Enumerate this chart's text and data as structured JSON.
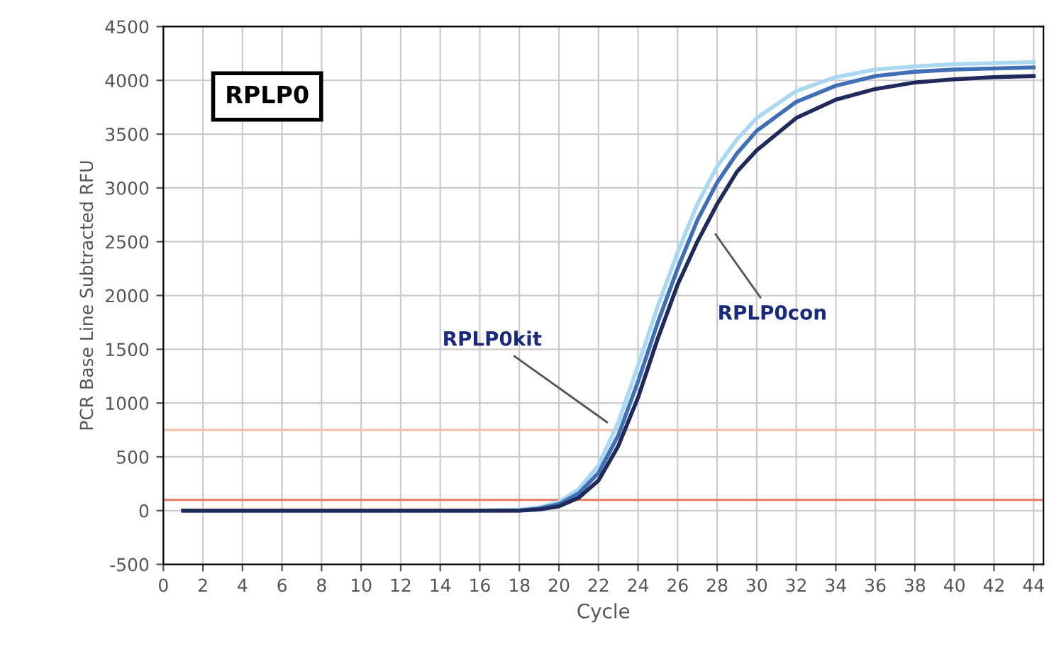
{
  "chart_data": {
    "type": "line",
    "xlabel": "Cycle",
    "ylabel": "PCR Base Line Subtracted RFU",
    "xlim": [
      0,
      44.5
    ],
    "xticks": [
      0,
      2,
      4,
      6,
      8,
      10,
      12,
      14,
      16,
      18,
      20,
      22,
      24,
      26,
      28,
      30,
      32,
      34,
      36,
      38,
      40,
      42,
      44
    ],
    "ylim": [
      -500,
      4500
    ],
    "yticks": [
      -500,
      0,
      500,
      1000,
      1500,
      2000,
      2500,
      3000,
      3500,
      4000,
      4500
    ],
    "grid": true,
    "marker": "none",
    "line_style": "solid",
    "x": [
      1,
      4,
      8,
      12,
      16,
      18,
      19,
      20,
      21,
      22,
      23,
      24,
      25,
      26,
      27,
      28,
      29,
      30,
      32,
      34,
      36,
      38,
      40,
      42,
      44
    ],
    "series": [
      {
        "color": "#a9d8f0",
        "values": [
          0,
          0,
          0,
          0,
          0,
          10,
          30,
          80,
          200,
          420,
          820,
          1350,
          1900,
          2400,
          2850,
          3200,
          3450,
          3650,
          3900,
          4030,
          4100,
          4130,
          4150,
          4160,
          4170
        ]
      },
      {
        "color": "#3f6fb5",
        "values": [
          0,
          0,
          0,
          0,
          0,
          0,
          20,
          60,
          160,
          350,
          700,
          1200,
          1750,
          2250,
          2700,
          3050,
          3320,
          3530,
          3800,
          3950,
          4040,
          4080,
          4100,
          4110,
          4120
        ]
      },
      {
        "color": "#1f2a5a",
        "values": [
          0,
          0,
          0,
          0,
          0,
          0,
          10,
          40,
          120,
          280,
          600,
          1050,
          1600,
          2100,
          2500,
          2850,
          3150,
          3350,
          3650,
          3820,
          3920,
          3980,
          4010,
          4030,
          4040
        ]
      }
    ],
    "ref_lines": [
      {
        "axis": "y",
        "value": 100,
        "color": "#e8826a"
      },
      {
        "axis": "y",
        "value": 750,
        "color": "#f3c0a8"
      }
    ],
    "annotations": [
      "RPLP0",
      {
        "text": "RPLP0con",
        "x": 27.8,
        "y": 2600
      },
      {
        "text": "RPLP0kit",
        "x": 22.6,
        "y": 800
      }
    ]
  }
}
